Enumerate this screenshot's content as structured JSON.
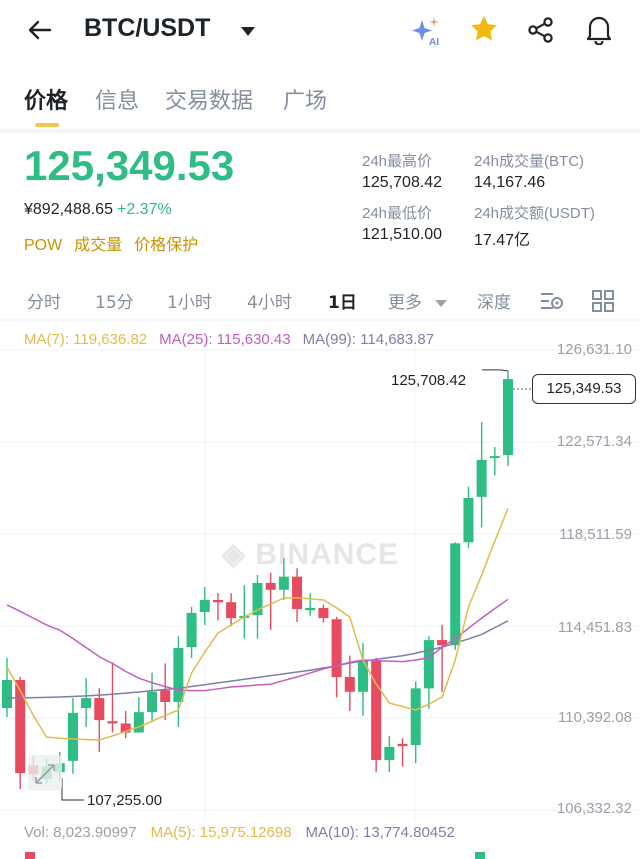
{
  "header": {
    "title": "BTC/USDT",
    "icons": [
      "back-arrow-icon",
      "dropdown-caret-icon",
      "ai-sparkle-icon",
      "star-icon",
      "share-icon",
      "bell-icon"
    ],
    "ai_badge": "AI"
  },
  "tabs": [
    {
      "label": "价格",
      "active": true
    },
    {
      "label": "信息"
    },
    {
      "label": "交易数据"
    },
    {
      "label": "广场"
    }
  ],
  "ticker": {
    "last_price": "125,349.53",
    "fiat_price": "¥892,488.65",
    "change_pct": "+2.37%",
    "tags": [
      "POW",
      "成交量",
      "价格保护"
    ],
    "stats": [
      {
        "label": "24h最高价",
        "value": "125,708.42"
      },
      {
        "label": "24h成交量(BTC)",
        "value": "14,167.46"
      },
      {
        "label": "24h最低价",
        "value": "121,510.00"
      },
      {
        "label": "24h成交额(USDT)",
        "value": "17.47亿"
      }
    ]
  },
  "intervals": {
    "items": [
      {
        "label": "分时"
      },
      {
        "label": "15分"
      },
      {
        "label": "1小时"
      },
      {
        "label": "4小时"
      },
      {
        "label": "1日",
        "active": true
      },
      {
        "label": "更多"
      },
      {
        "label": "深度"
      }
    ],
    "icons": [
      "indicator-settings-icon",
      "grid-layout-icon"
    ]
  },
  "ma_legend": {
    "ma7": "MA(7): 119,636.82",
    "ma25": "MA(25): 115,630.43",
    "ma99": "MA(99): 114,683.87"
  },
  "volume_legend": {
    "vol": "Vol: 8,023.90997",
    "ma5": "MA(5): 15,975.12698",
    "ma10": "MA(10): 13,774.80452"
  },
  "watermark": "BINANCE",
  "colors": {
    "up": "#2ebd85",
    "down": "#e84a5f",
    "ma7": "#e0bc4a",
    "ma25": "#c45ec0",
    "ma99": "#7d7fa8",
    "accent": "#f0c94c"
  },
  "chart_data": {
    "type": "candlestick",
    "interval": "1日",
    "y_ticks": [
      "126,631.10",
      "122,571.34",
      "118,511.59",
      "114,451.83",
      "110,392.08",
      "106,332.32"
    ],
    "ylim": [
      106332.32,
      126631.1
    ],
    "high_marker": "125,708.42",
    "low_marker": "107,255.00",
    "last_price_marker": "125,349.53",
    "grid": true,
    "candles": [
      [
        110833,
        113040,
        110437,
        112068
      ],
      [
        112068,
        112200,
        107255,
        107964
      ],
      [
        108300,
        108700,
        107600,
        107900
      ],
      [
        107700,
        108600,
        107500,
        108250
      ],
      [
        108000,
        108900,
        107600,
        108400
      ],
      [
        108500,
        111270,
        107930,
        110620
      ],
      [
        110830,
        112150,
        110000,
        111270
      ],
      [
        111270,
        111700,
        108900,
        110300
      ],
      [
        110250,
        112850,
        109750,
        110150
      ],
      [
        110150,
        110700,
        109500,
        109750
      ],
      [
        109750,
        111300,
        109750,
        110650
      ],
      [
        110650,
        112400,
        110200,
        111550
      ],
      [
        111620,
        112800,
        110300,
        111100
      ],
      [
        111100,
        114000,
        110000,
        113480
      ],
      [
        113520,
        115300,
        113040,
        115030
      ],
      [
        115070,
        116170,
        114500,
        115600
      ],
      [
        115600,
        115900,
        114700,
        115500
      ],
      [
        115500,
        115900,
        114450,
        114800
      ],
      [
        114850,
        116250,
        113900,
        114900
      ],
      [
        114930,
        116700,
        113900,
        116350
      ],
      [
        116350,
        116800,
        114280,
        116050
      ],
      [
        116050,
        117450,
        115600,
        116630
      ],
      [
        116630,
        117000,
        114630,
        115200
      ],
      [
        115150,
        115900,
        114900,
        115250
      ],
      [
        115250,
        115400,
        114600,
        114800
      ],
      [
        114750,
        114850,
        111300,
        112200
      ],
      [
        112200,
        113150,
        110700,
        111550
      ],
      [
        111550,
        113700,
        110500,
        112950
      ],
      [
        112950,
        113050,
        108000,
        108540
      ],
      [
        108540,
        109600,
        108000,
        109120
      ],
      [
        109250,
        109500,
        108250,
        109150
      ],
      [
        109200,
        112000,
        108400,
        111700
      ],
      [
        111700,
        114000,
        110800,
        113830
      ],
      [
        113830,
        114500,
        111550,
        113600
      ],
      [
        113600,
        118150,
        113400,
        118100
      ],
      [
        118150,
        120600,
        117900,
        120100
      ],
      [
        120150,
        123450,
        118800,
        121780
      ],
      [
        121900,
        122350,
        121100,
        121950
      ],
      [
        122000,
        125708.42,
        121510,
        125349.53
      ]
    ],
    "ma7": [
      112640,
      111600,
      110500,
      109550,
      109500,
      109470,
      109440,
      109420,
      109600,
      109800,
      110000,
      110250,
      110500,
      110750,
      112380,
      113300,
      114140,
      114500,
      114850,
      115160,
      115420,
      115690,
      115700,
      115650,
      115600,
      115250,
      114850,
      112950,
      111900,
      111050,
      110900,
      110740,
      111000,
      111320,
      112950,
      115290,
      116700,
      118200,
      119640
    ],
    "ma25": [
      115380,
      115100,
      114800,
      114500,
      114270,
      113900,
      113500,
      113100,
      112800,
      112450,
      112150,
      111950,
      111780,
      111630,
      111600,
      111600,
      111680,
      111760,
      111800,
      111850,
      111880,
      112050,
      112200,
      112380,
      112560,
      112700,
      112850,
      112950,
      112920,
      112900,
      112880,
      112950,
      113050,
      113520,
      113900,
      114350,
      114800,
      115220,
      115630
    ],
    "ma99": [
      111270,
      111280,
      111290,
      111300,
      111320,
      111340,
      111370,
      111400,
      111440,
      111490,
      111540,
      111600,
      111650,
      111700,
      111780,
      111860,
      111940,
      112020,
      112100,
      112180,
      112260,
      112340,
      112420,
      112500,
      112600,
      112700,
      112820,
      112900,
      112980,
      113060,
      113140,
      113250,
      113380,
      113520,
      113700,
      113880,
      114080,
      114380,
      114680
    ]
  }
}
